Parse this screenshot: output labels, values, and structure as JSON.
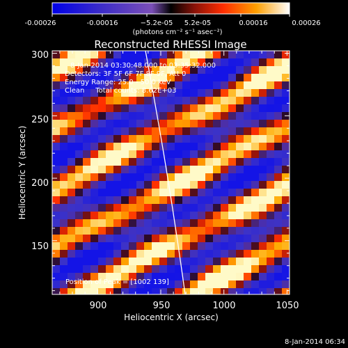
{
  "colorbar": {
    "tick_labels": [
      "-0.00026",
      "-0.00016",
      "−5.2e-05",
      "5.2e-05",
      "0.00016",
      "0.00026"
    ],
    "units_label": "(photons cm⁻² s⁻¹ asec⁻²)",
    "min_value": -0.00026,
    "max_value": 0.00026
  },
  "plot": {
    "title": "Reconstructed RHESSI Image",
    "xlabel": "Heliocentric X (arcsec)",
    "ylabel": "Heliocentric Y (arcsec)",
    "x_ticks": [
      "900",
      "950",
      "1000",
      "1050"
    ],
    "y_ticks": [
      "300",
      "250",
      "200",
      "150"
    ],
    "xlim": [
      864,
      1052
    ],
    "ylim": [
      107,
      302
    ]
  },
  "annotations": {
    "time_range": "8-Jan-2014 03:30:48.000 to 03:35:32.000",
    "detectors": "Detectors: 3F 5F 6F 7F 8F 9F, Att 0",
    "energy_range": "Energy Range: 25.0 - 50.0 keV",
    "clean_counts": "Clean     Total counts: 8.62E+03",
    "peak_position": "Position of Peak = [1002 139]"
  },
  "footer": {
    "timestamp": "8-Jan-2014 06:34"
  },
  "colors": {
    "background": "#000000",
    "text": "#ffffff",
    "limb_line": "#ffffff"
  }
}
